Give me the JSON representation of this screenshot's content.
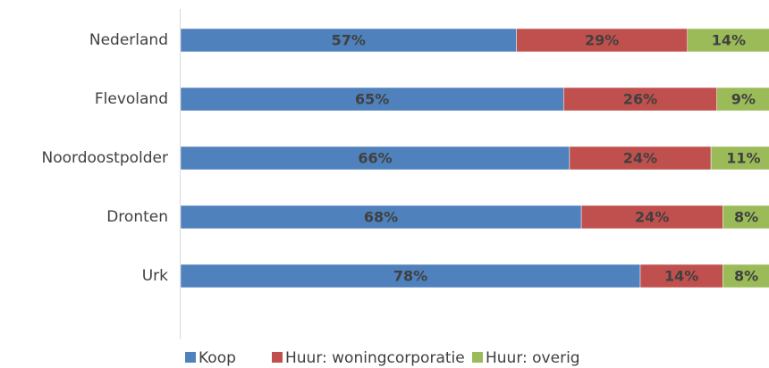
{
  "chart_data": {
    "type": "stacked-bar-horizontal",
    "categories": [
      "Nederland",
      "Flevoland",
      "Noordoostpolder",
      "Dronten",
      "Urk"
    ],
    "xlim": [
      0,
      100
    ],
    "series": [
      {
        "name": "Koop",
        "color": "#4f81bd",
        "values": [
          57,
          65,
          66,
          68,
          78
        ],
        "value_labels": [
          "57%",
          "65%",
          "66%",
          "68%",
          "78%"
        ]
      },
      {
        "name": "Huur: woningcorporatie",
        "color": "#c0504d",
        "values": [
          29,
          26,
          24,
          24,
          14
        ],
        "value_labels": [
          "29%",
          "26%",
          "24%",
          "24%",
          "14%"
        ]
      },
      {
        "name": "Huur: overig",
        "color": "#9bbb59",
        "values": [
          14,
          9,
          11,
          8,
          8
        ],
        "value_labels": [
          "14%",
          "9%",
          "11%",
          "8%",
          "8%"
        ]
      }
    ],
    "legend": "bottom"
  }
}
